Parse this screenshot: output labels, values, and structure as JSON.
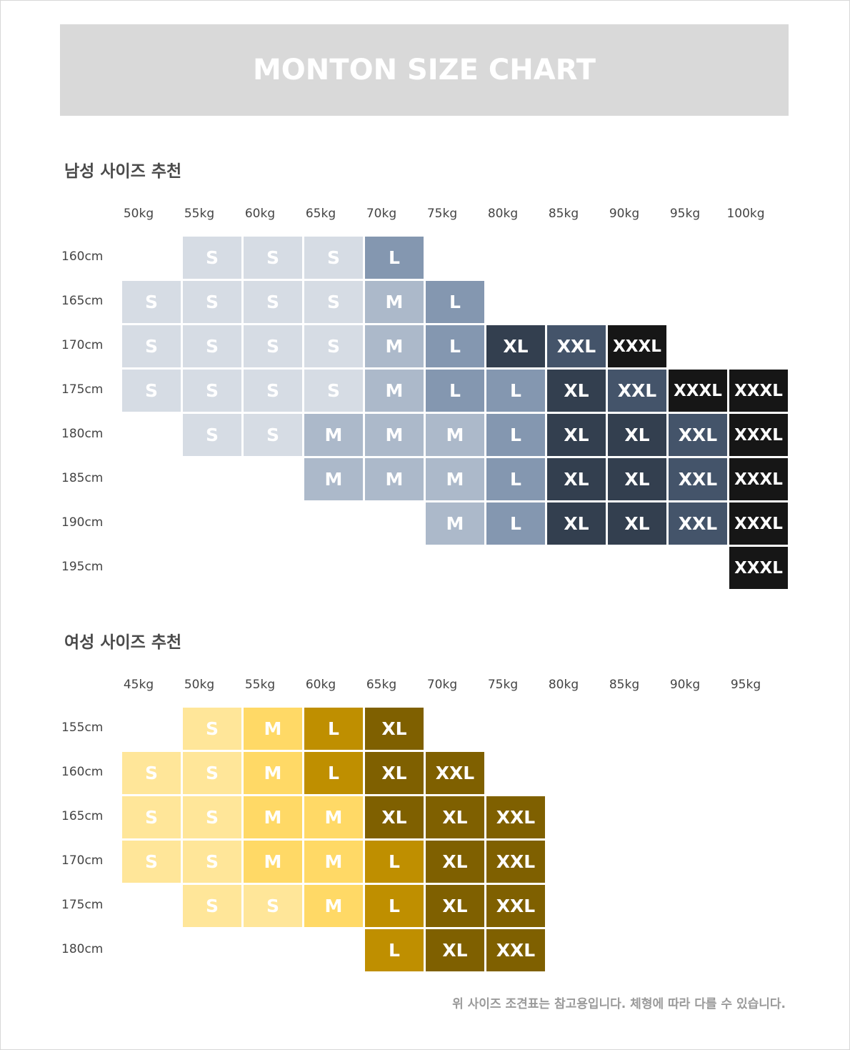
{
  "title": "MONTON SIZE CHART",
  "colors": {
    "men": {
      "S": "#d6dce4",
      "M": "#acb9ca",
      "L": "#8497b0",
      "XL": "#333f4f",
      "XXL": "#44546a",
      "XXXL": "#161616"
    },
    "women": {
      "S": "#ffe699",
      "M": "#ffd966",
      "L": "#bf8f00",
      "XL": "#7f6000",
      "XXL": "#7f6000"
    }
  },
  "men": {
    "heading": "남성 사이즈 추천",
    "weights": [
      "50kg",
      "55kg",
      "60kg",
      "65kg",
      "70kg",
      "75kg",
      "80kg",
      "85kg",
      "90kg",
      "95kg",
      "100kg"
    ],
    "rows": [
      {
        "height": "160cm",
        "sizes": [
          "",
          "S",
          "S",
          "S",
          "L",
          "",
          "",
          "",
          "",
          "",
          ""
        ]
      },
      {
        "height": "165cm",
        "sizes": [
          "S",
          "S",
          "S",
          "S",
          "M",
          "L",
          "",
          "",
          "",
          "",
          ""
        ]
      },
      {
        "height": "170cm",
        "sizes": [
          "S",
          "S",
          "S",
          "S",
          "M",
          "L",
          "XL",
          "XXL",
          "XXXL",
          "",
          ""
        ]
      },
      {
        "height": "175cm",
        "sizes": [
          "S",
          "S",
          "S",
          "S",
          "M",
          "L",
          "L",
          "XL",
          "XXL",
          "XXXL",
          "XXXL"
        ]
      },
      {
        "height": "180cm",
        "sizes": [
          "",
          "S",
          "S",
          "M",
          "M",
          "M",
          "L",
          "XL",
          "XL",
          "XXL",
          "XXXL"
        ]
      },
      {
        "height": "185cm",
        "sizes": [
          "",
          "",
          "",
          "M",
          "M",
          "M",
          "L",
          "XL",
          "XL",
          "XXL",
          "XXXL"
        ]
      },
      {
        "height": "190cm",
        "sizes": [
          "",
          "",
          "",
          "",
          "",
          "M",
          "L",
          "XL",
          "XL",
          "XXL",
          "XXXL"
        ]
      },
      {
        "height": "195cm",
        "sizes": [
          "",
          "",
          "",
          "",
          "",
          "",
          "",
          "",
          "",
          "",
          "XXXL"
        ]
      }
    ]
  },
  "women": {
    "heading": "여성 사이즈 추천",
    "weights": [
      "45kg",
      "50kg",
      "55kg",
      "60kg",
      "65kg",
      "70kg",
      "75kg",
      "80kg",
      "85kg",
      "90kg",
      "95kg"
    ],
    "rows": [
      {
        "height": "155cm",
        "sizes": [
          "",
          "S",
          "M",
          "L",
          "XL",
          "",
          "",
          "",
          "",
          "",
          ""
        ]
      },
      {
        "height": "160cm",
        "sizes": [
          "S",
          "S",
          "M",
          "L",
          "XL",
          "XXL",
          "",
          "",
          "",
          "",
          ""
        ]
      },
      {
        "height": "165cm",
        "sizes": [
          "S",
          "S",
          "M",
          "M",
          "XL",
          "XL",
          "XXL",
          "",
          "",
          "",
          ""
        ]
      },
      {
        "height": "170cm",
        "sizes": [
          "S",
          "S",
          "M",
          "M",
          "L",
          "XL",
          "XXL",
          "",
          "",
          "",
          ""
        ]
      },
      {
        "height": "175cm",
        "sizes": [
          "",
          "S",
          "S",
          "M",
          "L",
          "XL",
          "XXL",
          "",
          "",
          "",
          ""
        ]
      },
      {
        "height": "180cm",
        "sizes": [
          "",
          "",
          "",
          "",
          "L",
          "XL",
          "XXL",
          "",
          "",
          "",
          ""
        ]
      }
    ]
  },
  "footnote": "위 사이즈 조견표는 참고용입니다. 체형에 따라 다를 수 있습니다."
}
